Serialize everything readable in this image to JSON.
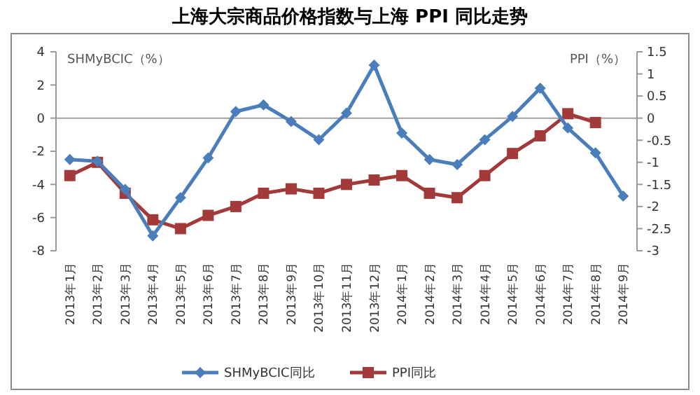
{
  "chart_data": {
    "type": "line",
    "title": "上海大宗商品价格指数与上海 PPI 同比走势",
    "ylabel": "SHMyBCIC（%）",
    "y2label": "PPI（%）",
    "categories": [
      "2013年1月",
      "2013年2月",
      "2013年3月",
      "2013年4月",
      "2013年5月",
      "2013年6月",
      "2013年7月",
      "2013年8月",
      "2013年9月",
      "2013年10月",
      "2013年11月",
      "2013年12月",
      "2014年1月",
      "2014年2月",
      "2014年3月",
      "2014年4月",
      "2014年5月",
      "2014年6月",
      "2014年7月",
      "2014年8月",
      "2014年9月"
    ],
    "series": [
      {
        "name": "SHMyBCIC同比",
        "color": "#4a7ebb",
        "marker": "diamond",
        "values": [
          -2.5,
          -2.6,
          -4.3,
          -7.1,
          -4.8,
          -2.4,
          0.4,
          0.8,
          -0.2,
          -1.3,
          0.3,
          3.2,
          -0.9,
          -2.5,
          -2.8,
          -1.3,
          0.1,
          1.8,
          -0.6,
          -2.1,
          -4.7
        ]
      },
      {
        "name": "PPI同比",
        "color": "#a33a3a",
        "marker": "square",
        "axis": "y2",
        "values": [
          -1.3,
          -1.0,
          -1.7,
          -2.3,
          -2.5,
          -2.2,
          -2.0,
          -1.7,
          -1.6,
          -1.7,
          -1.5,
          -1.4,
          -1.3,
          -1.7,
          -1.8,
          -1.3,
          -0.8,
          -0.4,
          0.1,
          -0.1,
          null
        ]
      }
    ],
    "ylim": [
      -8,
      4
    ],
    "yticks": [
      -8,
      -6,
      -4,
      -2,
      0,
      2,
      4
    ],
    "y2lim": [
      -3,
      1.5
    ],
    "y2ticks": [
      -3,
      -2.5,
      -2,
      -1.5,
      -1,
      -0.5,
      0,
      0.5,
      1,
      1.5
    ],
    "ref_lines": [
      {
        "axis": "y",
        "value": 0,
        "color": "#a0a0a0"
      }
    ],
    "legend": "bottom",
    "grid": false,
    "line_style": "solid"
  }
}
